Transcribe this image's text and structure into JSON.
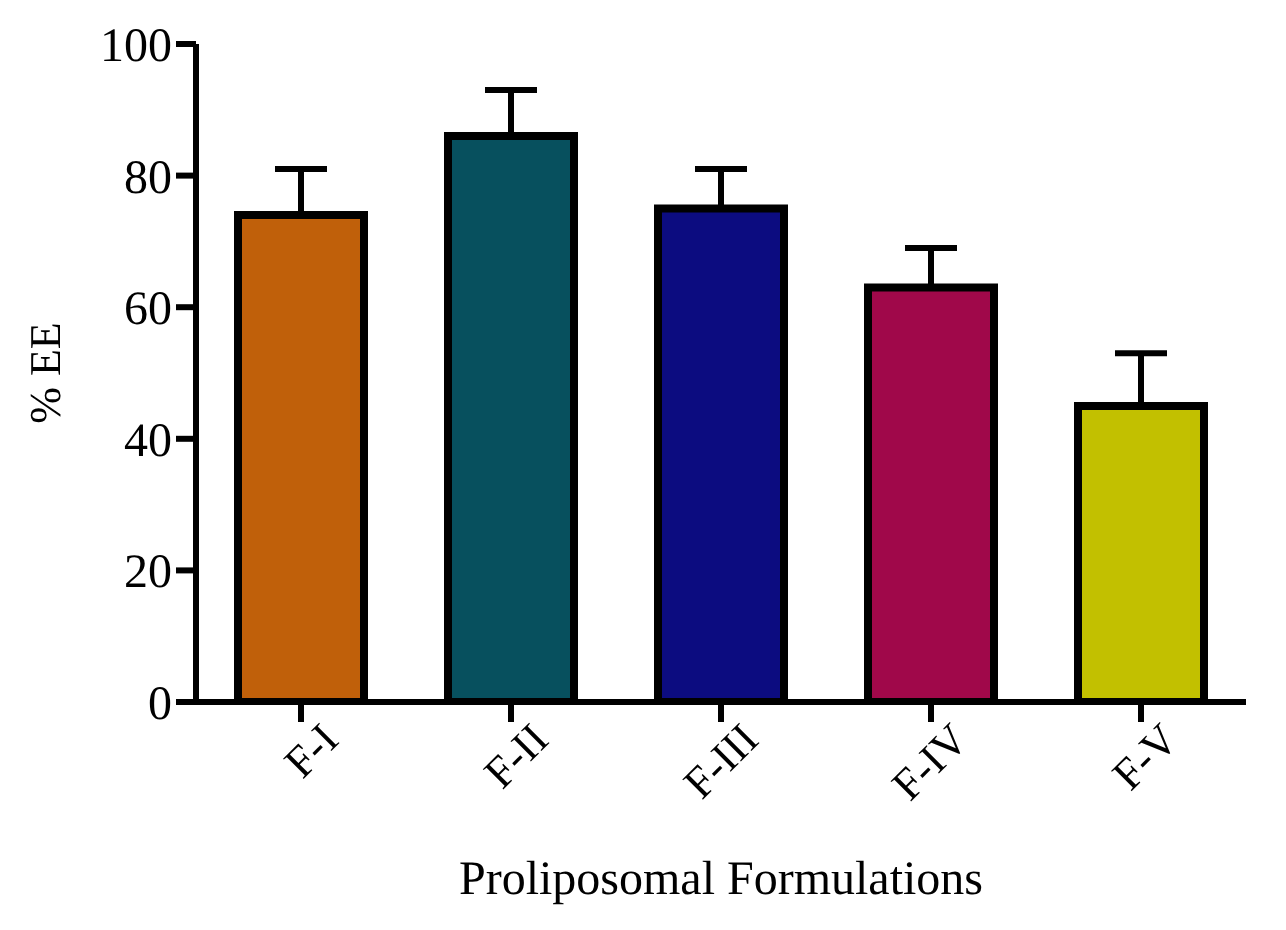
{
  "chart_data": {
    "type": "bar",
    "xlabel": "Proliposomal Formulations",
    "ylabel": "% EE",
    "categories": [
      "F-I",
      "F-II",
      "F-III",
      "F-IV",
      "F-V"
    ],
    "values": [
      74,
      86,
      75,
      63,
      45
    ],
    "colors": [
      "#c0600a",
      "#07505e",
      "#0c0c80",
      "#a0084a",
      "#c2c000"
    ],
    "errors": [
      [
        74,
        81
      ],
      [
        86,
        93
      ],
      [
        75,
        81
      ],
      [
        63,
        69
      ],
      [
        45,
        53
      ]
    ],
    "ylim": [
      0,
      100
    ],
    "yticks": [
      0,
      20,
      40,
      60,
      80,
      100
    ],
    "grid": false,
    "legend": false
  }
}
